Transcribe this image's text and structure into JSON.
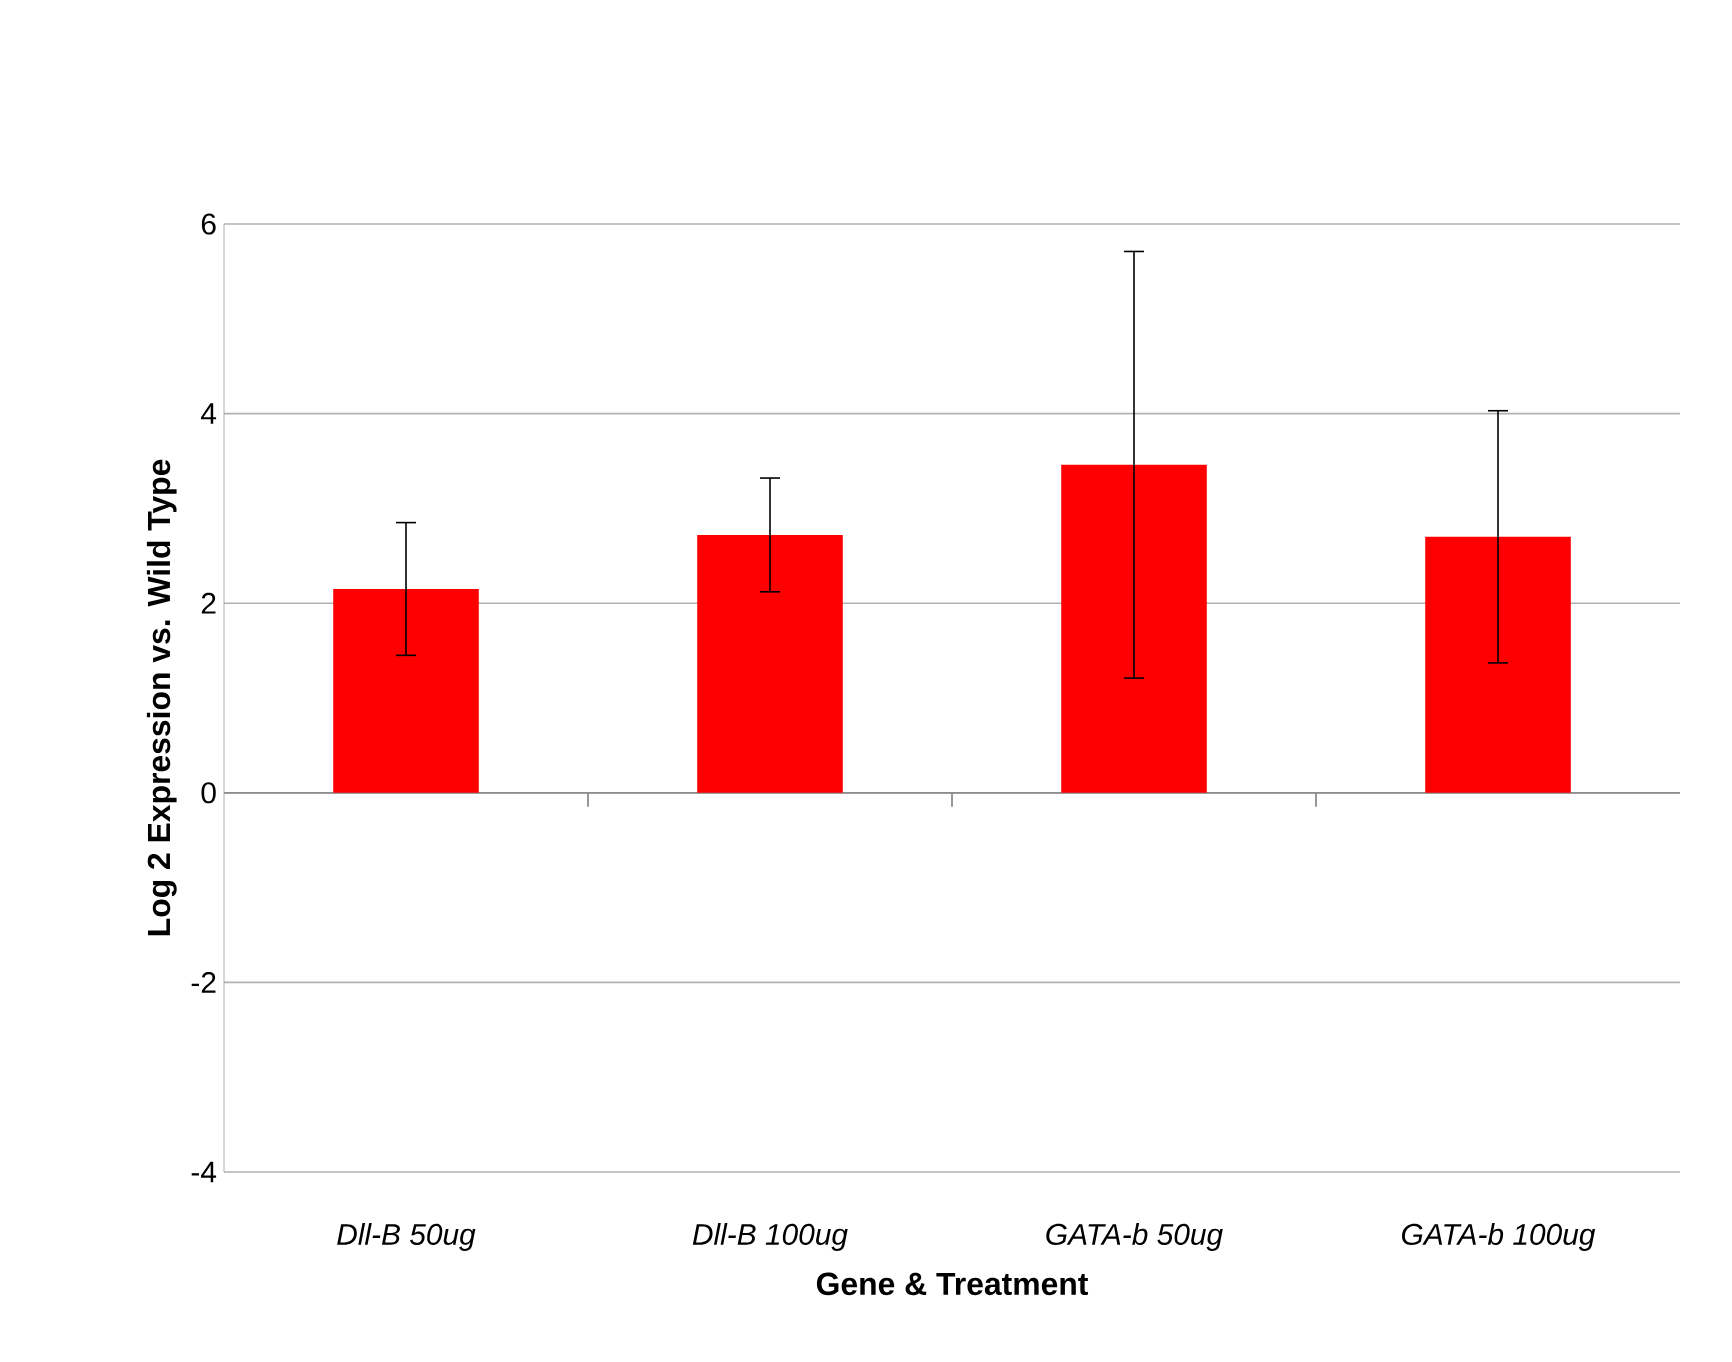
{
  "chart_data": {
    "type": "bar",
    "xlabel": "Gene & Treatment",
    "ylabel": "Log 2 Expression vs. Wild Type",
    "categories": [
      "Dll-B 50ug",
      "Dll-B 100ug",
      "GATA-b 50ug",
      "GATA-b 100ug"
    ],
    "values": [
      2.15,
      2.72,
      3.46,
      2.7
    ],
    "errors": [
      0.7,
      0.6,
      2.25,
      1.33
    ],
    "color": "#ff0000",
    "ylim": [
      -4,
      6
    ],
    "yticks": [
      -4,
      -2,
      0,
      2,
      4,
      6
    ],
    "grid": "y"
  }
}
